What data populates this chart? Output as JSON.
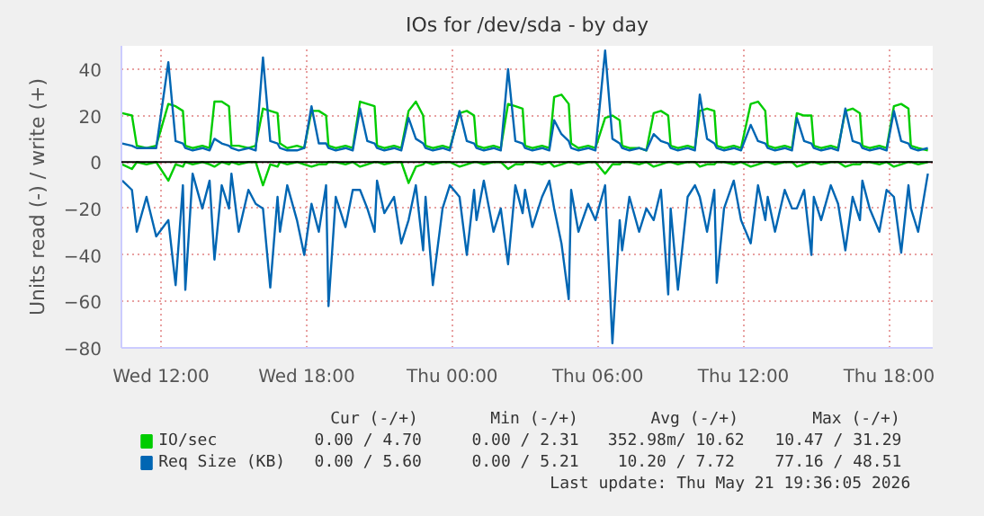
{
  "chart_data": {
    "type": "line",
    "title": "IOs for /dev/sda - by day",
    "ylabel": "Units read (-) / write (+)",
    "x": [
      "2026-05-20T10:24",
      "2026-05-20T10:48",
      "2026-05-20T11:00",
      "2026-05-20T11:24",
      "2026-05-20T11:48",
      "2026-05-20T12:18",
      "2026-05-20T12:36",
      "2026-05-20T12:54",
      "2026-05-20T13:00",
      "2026-05-20T13:18",
      "2026-05-20T13:42",
      "2026-05-20T14:00",
      "2026-05-20T14:12",
      "2026-05-20T14:30",
      "2026-05-20T14:48",
      "2026-05-20T14:54",
      "2026-05-20T15:12",
      "2026-05-20T15:36",
      "2026-05-20T15:54",
      "2026-05-20T16:12",
      "2026-05-20T16:30",
      "2026-05-20T16:48",
      "2026-05-20T16:54",
      "2026-05-20T17:12",
      "2026-05-20T17:36",
      "2026-05-20T17:54",
      "2026-05-20T18:12",
      "2026-05-20T18:30",
      "2026-05-20T18:48",
      "2026-05-20T18:54",
      "2026-05-20T19:12",
      "2026-05-20T19:36",
      "2026-05-20T19:54",
      "2026-05-20T20:12",
      "2026-05-20T20:30",
      "2026-05-20T20:48",
      "2026-05-20T20:54",
      "2026-05-20T21:12",
      "2026-05-20T21:36",
      "2026-05-20T21:54",
      "2026-05-20T22:12",
      "2026-05-20T22:30",
      "2026-05-20T22:48",
      "2026-05-20T22:54",
      "2026-05-20T23:12",
      "2026-05-20T23:36",
      "2026-05-20T23:54",
      "2026-05-21T00:18",
      "2026-05-21T00:36",
      "2026-05-21T00:54",
      "2026-05-21T01:00",
      "2026-05-21T01:18",
      "2026-05-21T01:42",
      "2026-05-21T02:00",
      "2026-05-21T02:18",
      "2026-05-21T02:36",
      "2026-05-21T02:54",
      "2026-05-21T03:00",
      "2026-05-21T03:18",
      "2026-05-21T03:42",
      "2026-05-21T04:00",
      "2026-05-21T04:12",
      "2026-05-21T04:30",
      "2026-05-21T04:48",
      "2026-05-21T04:54",
      "2026-05-21T05:12",
      "2026-05-21T05:36",
      "2026-05-21T05:54",
      "2026-05-21T06:18",
      "2026-05-21T06:36",
      "2026-05-21T06:54",
      "2026-05-21T07:00",
      "2026-05-21T07:18",
      "2026-05-21T07:42",
      "2026-05-21T08:00",
      "2026-05-21T08:18",
      "2026-05-21T08:36",
      "2026-05-21T08:54",
      "2026-05-21T09:00",
      "2026-05-21T09:18",
      "2026-05-21T09:42",
      "2026-05-21T10:00",
      "2026-05-21T10:12",
      "2026-05-21T10:30",
      "2026-05-21T10:48",
      "2026-05-21T10:54",
      "2026-05-21T11:12",
      "2026-05-21T11:36",
      "2026-05-21T11:54",
      "2026-05-21T12:18",
      "2026-05-21T12:36",
      "2026-05-21T12:54",
      "2026-05-21T13:00",
      "2026-05-21T13:18",
      "2026-05-21T13:42",
      "2026-05-21T14:00",
      "2026-05-21T14:12",
      "2026-05-21T14:30",
      "2026-05-21T14:48",
      "2026-05-21T14:54",
      "2026-05-21T15:12",
      "2026-05-21T15:36",
      "2026-05-21T15:54",
      "2026-05-21T16:12",
      "2026-05-21T16:30",
      "2026-05-21T16:48",
      "2026-05-21T16:54",
      "2026-05-21T17:12",
      "2026-05-21T17:36",
      "2026-05-21T17:54",
      "2026-05-21T18:12",
      "2026-05-21T18:30",
      "2026-05-21T18:48",
      "2026-05-21T18:54",
      "2026-05-21T19:12",
      "2026-05-21T19:36"
    ],
    "series": [
      {
        "name": "IO/sec",
        "color": "#00cc00",
        "values": [
          21,
          20,
          7,
          6,
          7,
          25,
          24,
          22,
          7,
          6,
          7,
          6,
          26,
          26,
          24,
          7,
          7,
          6,
          7,
          23,
          22,
          21,
          8,
          6,
          7,
          6,
          22,
          22,
          20,
          7,
          6,
          7,
          6,
          26,
          25,
          24,
          7,
          6,
          7,
          6,
          22,
          26,
          20,
          7,
          6,
          7,
          6,
          21,
          22,
          20,
          7,
          6,
          7,
          6,
          25,
          24,
          23,
          7,
          6,
          7,
          6,
          28,
          29,
          25,
          8,
          6,
          7,
          6,
          19,
          20,
          18,
          7,
          6,
          6,
          5,
          21,
          22,
          20,
          7,
          6,
          7,
          6,
          22,
          23,
          22,
          7,
          6,
          7,
          6,
          25,
          26,
          22,
          7,
          6,
          7,
          6,
          21,
          20,
          20,
          7,
          6,
          7,
          6,
          22,
          23,
          21,
          7,
          6,
          7,
          6,
          24,
          25,
          23,
          7,
          6,
          5
        ]
      },
      {
        "color": "#00cc00",
        "values": [
          -1,
          -3,
          0,
          -1,
          0,
          -8,
          -1,
          -2,
          0,
          -1,
          0,
          -1,
          -2,
          0,
          -1,
          0,
          -1,
          0,
          0,
          -10,
          -1,
          -2,
          0,
          -1,
          0,
          -1,
          -2,
          -1,
          -1,
          0,
          0,
          -1,
          0,
          -2,
          -1,
          0,
          0,
          -1,
          0,
          0,
          -9,
          -2,
          -1,
          0,
          -1,
          0,
          0,
          -2,
          -1,
          0,
          0,
          -1,
          0,
          0,
          -3,
          -1,
          -1,
          0,
          0,
          -1,
          0,
          -2,
          -1,
          0,
          0,
          -1,
          0,
          0,
          -5,
          -1,
          -1,
          0,
          0,
          -1,
          0,
          -2,
          -1,
          0,
          0,
          -1,
          0,
          0,
          -2,
          -1,
          -1,
          0,
          0,
          -1,
          0,
          -2,
          -1,
          0,
          0,
          -1,
          0,
          0,
          -2,
          -1,
          0,
          0,
          -1,
          0,
          0,
          -2,
          -1,
          -1,
          0,
          0,
          -1,
          0,
          -2,
          -1,
          0,
          0,
          -1,
          0
        ]
      },
      {
        "name": "Req Size (KB)",
        "color": "#0066b3",
        "values": [
          8,
          7,
          6,
          6,
          6,
          43,
          9,
          8,
          6,
          5,
          6,
          5,
          10,
          8,
          7,
          6,
          5,
          6,
          5,
          45,
          9,
          8,
          6,
          5,
          5,
          6,
          24,
          8,
          8,
          6,
          5,
          6,
          5,
          23,
          9,
          8,
          6,
          5,
          6,
          5,
          19,
          10,
          8,
          6,
          5,
          6,
          5,
          22,
          9,
          8,
          6,
          5,
          6,
          5,
          40,
          9,
          8,
          6,
          5,
          6,
          5,
          18,
          12,
          9,
          6,
          5,
          6,
          5,
          48,
          10,
          8,
          6,
          5,
          6,
          5,
          12,
          9,
          8,
          6,
          5,
          6,
          5,
          29,
          10,
          8,
          6,
          5,
          6,
          5,
          16,
          9,
          8,
          6,
          5,
          6,
          5,
          19,
          9,
          8,
          6,
          5,
          6,
          5,
          23,
          9,
          8,
          6,
          5,
          6,
          5,
          22,
          9,
          8,
          6,
          5,
          6
        ]
      },
      {
        "color": "#0066b3",
        "values": [
          -8,
          -12,
          -30,
          -15,
          -32,
          -25,
          -53,
          -10,
          -55,
          -5,
          -20,
          -8,
          -42,
          -10,
          -20,
          -5,
          -30,
          -12,
          -18,
          -20,
          -54,
          -15,
          -30,
          -10,
          -25,
          -40,
          -18,
          -30,
          -10,
          -62,
          -15,
          -28,
          -12,
          -12,
          -20,
          -30,
          -8,
          -22,
          -15,
          -35,
          -25,
          -10,
          -38,
          -15,
          -53,
          -20,
          -10,
          -15,
          -40,
          -12,
          -25,
          -8,
          -30,
          -20,
          -44,
          -10,
          -22,
          -12,
          -28,
          -15,
          -8,
          -20,
          -35,
          -59,
          -12,
          -30,
          -18,
          -25,
          -10,
          -78,
          -25,
          -38,
          -15,
          -30,
          -20,
          -25,
          -12,
          -57,
          -20,
          -55,
          -15,
          -10,
          -15,
          -30,
          -12,
          -52,
          -20,
          -8,
          -25,
          -35,
          -10,
          -25,
          -15,
          -30,
          -12,
          -20,
          -20,
          -12,
          -40,
          -15,
          -25,
          -10,
          -18,
          -38,
          -15,
          -25,
          -8,
          -20,
          -30,
          -12,
          -15,
          -39,
          -10,
          -20,
          -30,
          -5
        ]
      }
    ],
    "xlim": [
      "2026-05-20T10:22",
      "2026-05-21T19:48"
    ],
    "xticks": [
      {
        "value": "2026-05-20T12:00",
        "label": "Wed 12:00"
      },
      {
        "value": "2026-05-20T18:00",
        "label": "Wed 18:00"
      },
      {
        "value": "2026-05-21T00:00",
        "label": "Thu 00:00"
      },
      {
        "value": "2026-05-21T06:00",
        "label": "Thu 06:00"
      },
      {
        "value": "2026-05-21T12:00",
        "label": "Thu 12:00"
      },
      {
        "value": "2026-05-21T18:00",
        "label": "Thu 18:00"
      }
    ],
    "ylim": [
      -80,
      50
    ],
    "yticks": [
      -80,
      -60,
      -40,
      -20,
      0,
      20,
      40
    ],
    "ref_lines": [
      {
        "axis": "y",
        "value": 0,
        "color": "#000000"
      }
    ],
    "grid": true,
    "legend": "bottom",
    "annotations": [
      "Cur (-/+)",
      "Min (-/+)",
      "Avg (-/+)",
      "Max (-/+)",
      "0.00 /  4.70",
      "0.00 /  2.31",
      "352.98m/ 10.62",
      "10.47 / 31.29",
      "0.00 /  5.60",
      "0.00 /  5.21",
      "10.20 /  7.72",
      "77.16 / 48.51",
      "Last update: Thu May 21 19:36:05 2026"
    ]
  }
}
